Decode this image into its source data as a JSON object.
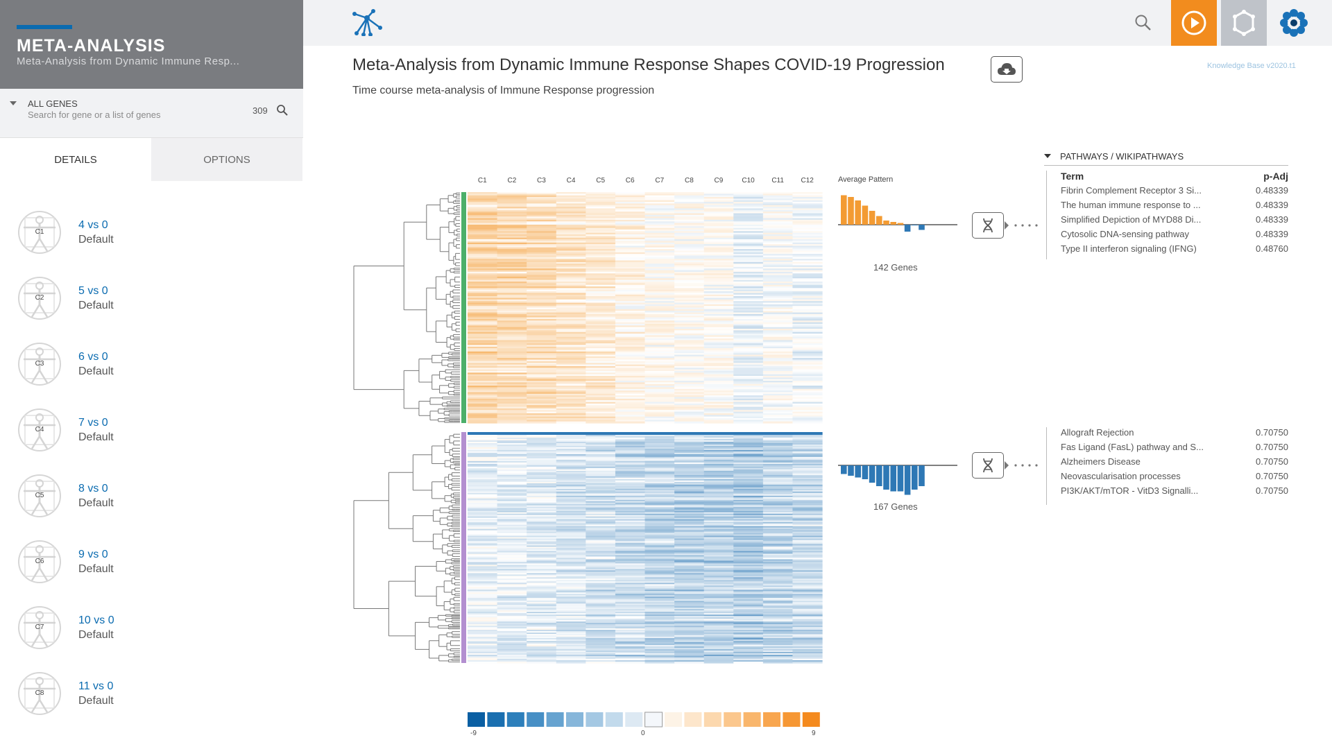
{
  "sidebar": {
    "title": "META-ANALYSIS",
    "subtitle": "Meta-Analysis from Dynamic Immune Resp...",
    "gene_filter": {
      "label": "ALL GENES",
      "placeholder": "Search for gene or a list of genes",
      "count": "309"
    },
    "tabs": [
      {
        "label": "DETAILS"
      },
      {
        "label": "OPTIONS"
      }
    ],
    "comparisons": [
      {
        "badge": "C1",
        "name": "4 vs 0",
        "desc": "Default"
      },
      {
        "badge": "C2",
        "name": "5 vs 0",
        "desc": "Default"
      },
      {
        "badge": "C3",
        "name": "6 vs 0",
        "desc": "Default"
      },
      {
        "badge": "C4",
        "name": "7 vs 0",
        "desc": "Default"
      },
      {
        "badge": "C5",
        "name": "8 vs 0",
        "desc": "Default"
      },
      {
        "badge": "C6",
        "name": "9 vs 0",
        "desc": "Default"
      },
      {
        "badge": "C7",
        "name": "10 vs 0",
        "desc": "Default"
      },
      {
        "badge": "C8",
        "name": "11 vs 0",
        "desc": "Default"
      }
    ]
  },
  "topbar": {
    "icons": [
      "network-logo-icon",
      "search-icon",
      "play-icon",
      "settings-icon",
      "brand-logo-icon"
    ]
  },
  "page": {
    "title": "Meta-Analysis from Dynamic Immune Response Shapes COVID-19 Progression",
    "subtitle": "Time course meta-analysis of Immune Response progression",
    "kb_version": "Knowledge Base v2020.t1"
  },
  "heatmap": {
    "columns": [
      "C1",
      "C2",
      "C3",
      "C4",
      "C5",
      "C6",
      "C7",
      "C8",
      "C9",
      "C10",
      "C11",
      "C12"
    ],
    "clusters": [
      {
        "genes": "142 Genes",
        "side_color": "#4caf6a",
        "pattern_label": "Average Pattern",
        "avg_pattern": [
          0.85,
          0.8,
          0.7,
          0.55,
          0.4,
          0.25,
          0.12,
          0.08,
          0.05,
          -0.2,
          -0.02,
          -0.15
        ]
      },
      {
        "genes": "167 Genes",
        "side_color": "#b38fd0",
        "avg_pattern": [
          -0.25,
          -0.3,
          -0.35,
          -0.4,
          -0.5,
          -0.6,
          -0.7,
          -0.75,
          -0.75,
          -0.85,
          -0.7,
          -0.6
        ]
      }
    ],
    "colors": {
      "up": "#f39b33",
      "down": "#2e78b5",
      "neutral": "#ffffff"
    },
    "scale": {
      "min": "-9",
      "mid": "0",
      "max": "9",
      "swatches": [
        "#0a5fa3",
        "#1a6fb0",
        "#2d7fbb",
        "#478fc5",
        "#66a3d0",
        "#86b6da",
        "#a4c8e3",
        "#c2daec",
        "#dde9f3",
        "#f4f7fb",
        "#fdf3e6",
        "#fde6cb",
        "#fcd8ae",
        "#fbc78d",
        "#f9b66c",
        "#f8a64f",
        "#f69734",
        "#f48a1e"
      ]
    }
  },
  "pathways": {
    "header": "PATHWAYS / WIKIPATHWAYS",
    "columns": {
      "term": "Term",
      "p": "p-Adj"
    },
    "cluster1": [
      {
        "term": "Fibrin Complement Receptor 3 Si...",
        "p": "0.48339"
      },
      {
        "term": "The human immune response to ...",
        "p": "0.48339"
      },
      {
        "term": "Simplified Depiction of MYD88 Di...",
        "p": "0.48339"
      },
      {
        "term": "Cytosolic DNA-sensing pathway",
        "p": "0.48339"
      },
      {
        "term": "Type II interferon signaling (IFNG)",
        "p": "0.48760"
      }
    ],
    "cluster2": [
      {
        "term": "Allograft Rejection",
        "p": "0.70750"
      },
      {
        "term": "Fas Ligand (FasL) pathway and S...",
        "p": "0.70750"
      },
      {
        "term": "Alzheimers Disease",
        "p": "0.70750"
      },
      {
        "term": "Neovascularisation processes",
        "p": "0.70750"
      },
      {
        "term": "PI3K/AKT/mTOR - VitD3 Signalli...",
        "p": "0.70750"
      }
    ]
  }
}
